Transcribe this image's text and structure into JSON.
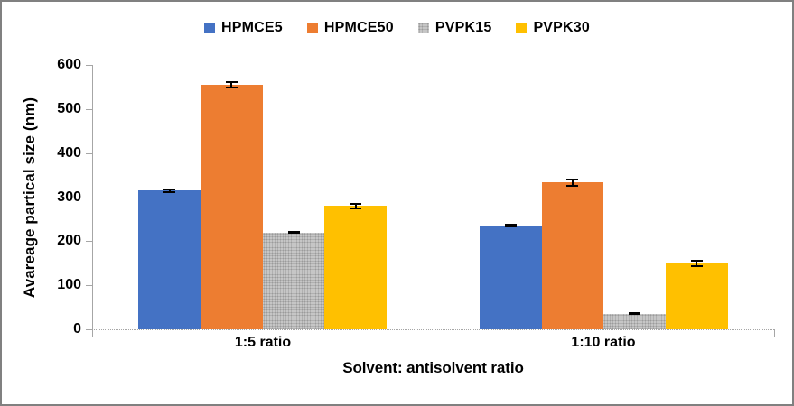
{
  "chart_data": {
    "type": "bar",
    "title": "",
    "categories": [
      "1:5 ratio",
      "1:10 ratio"
    ],
    "series": [
      {
        "name": "HPMCE5",
        "color": "#4472C4",
        "pattern": "solid",
        "values": [
          315,
          235
        ],
        "errors": [
          5,
          4
        ]
      },
      {
        "name": "HPMCE50",
        "color": "#ED7D31",
        "pattern": "solid",
        "values": [
          555,
          333
        ],
        "errors": [
          8,
          10
        ]
      },
      {
        "name": "PVPK15",
        "color": "#BFBFBF",
        "pattern": "dots",
        "values": [
          220,
          35
        ],
        "errors": [
          3,
          3
        ]
      },
      {
        "name": "PVPK30",
        "color": "#FFC000",
        "pattern": "solid",
        "values": [
          280,
          150
        ],
        "errors": [
          7,
          8
        ]
      }
    ],
    "xlabel": "Solvent: antisolvent ratio",
    "ylabel": "Avareage partical size (nm)",
    "ylim": [
      0,
      600
    ],
    "ytick_step": 100,
    "grid": false,
    "legend_position": "top",
    "error_bars": true,
    "axis_color": "#a6a6a6"
  }
}
